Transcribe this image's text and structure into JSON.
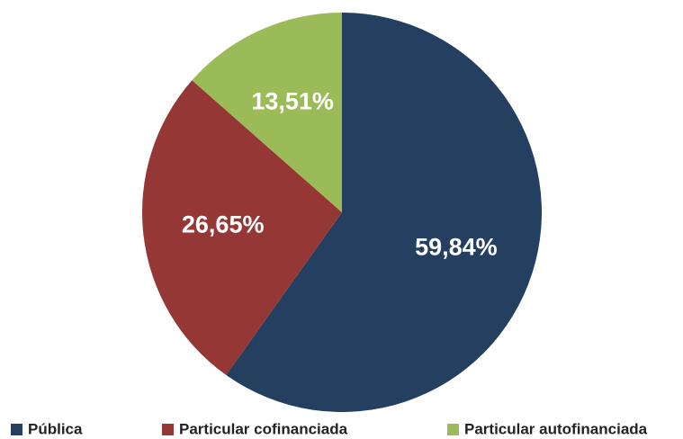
{
  "chart_data": {
    "type": "pie",
    "categories": [
      "Pública",
      "Particular cofinanciada",
      "Particular autofinanciada"
    ],
    "values": [
      59.84,
      26.65,
      13.51
    ],
    "value_labels": [
      "59,84%",
      "26,65%",
      "13,51%"
    ],
    "colors": [
      "#243f60",
      "#953735",
      "#9bbb59"
    ],
    "legend": "bottom"
  }
}
